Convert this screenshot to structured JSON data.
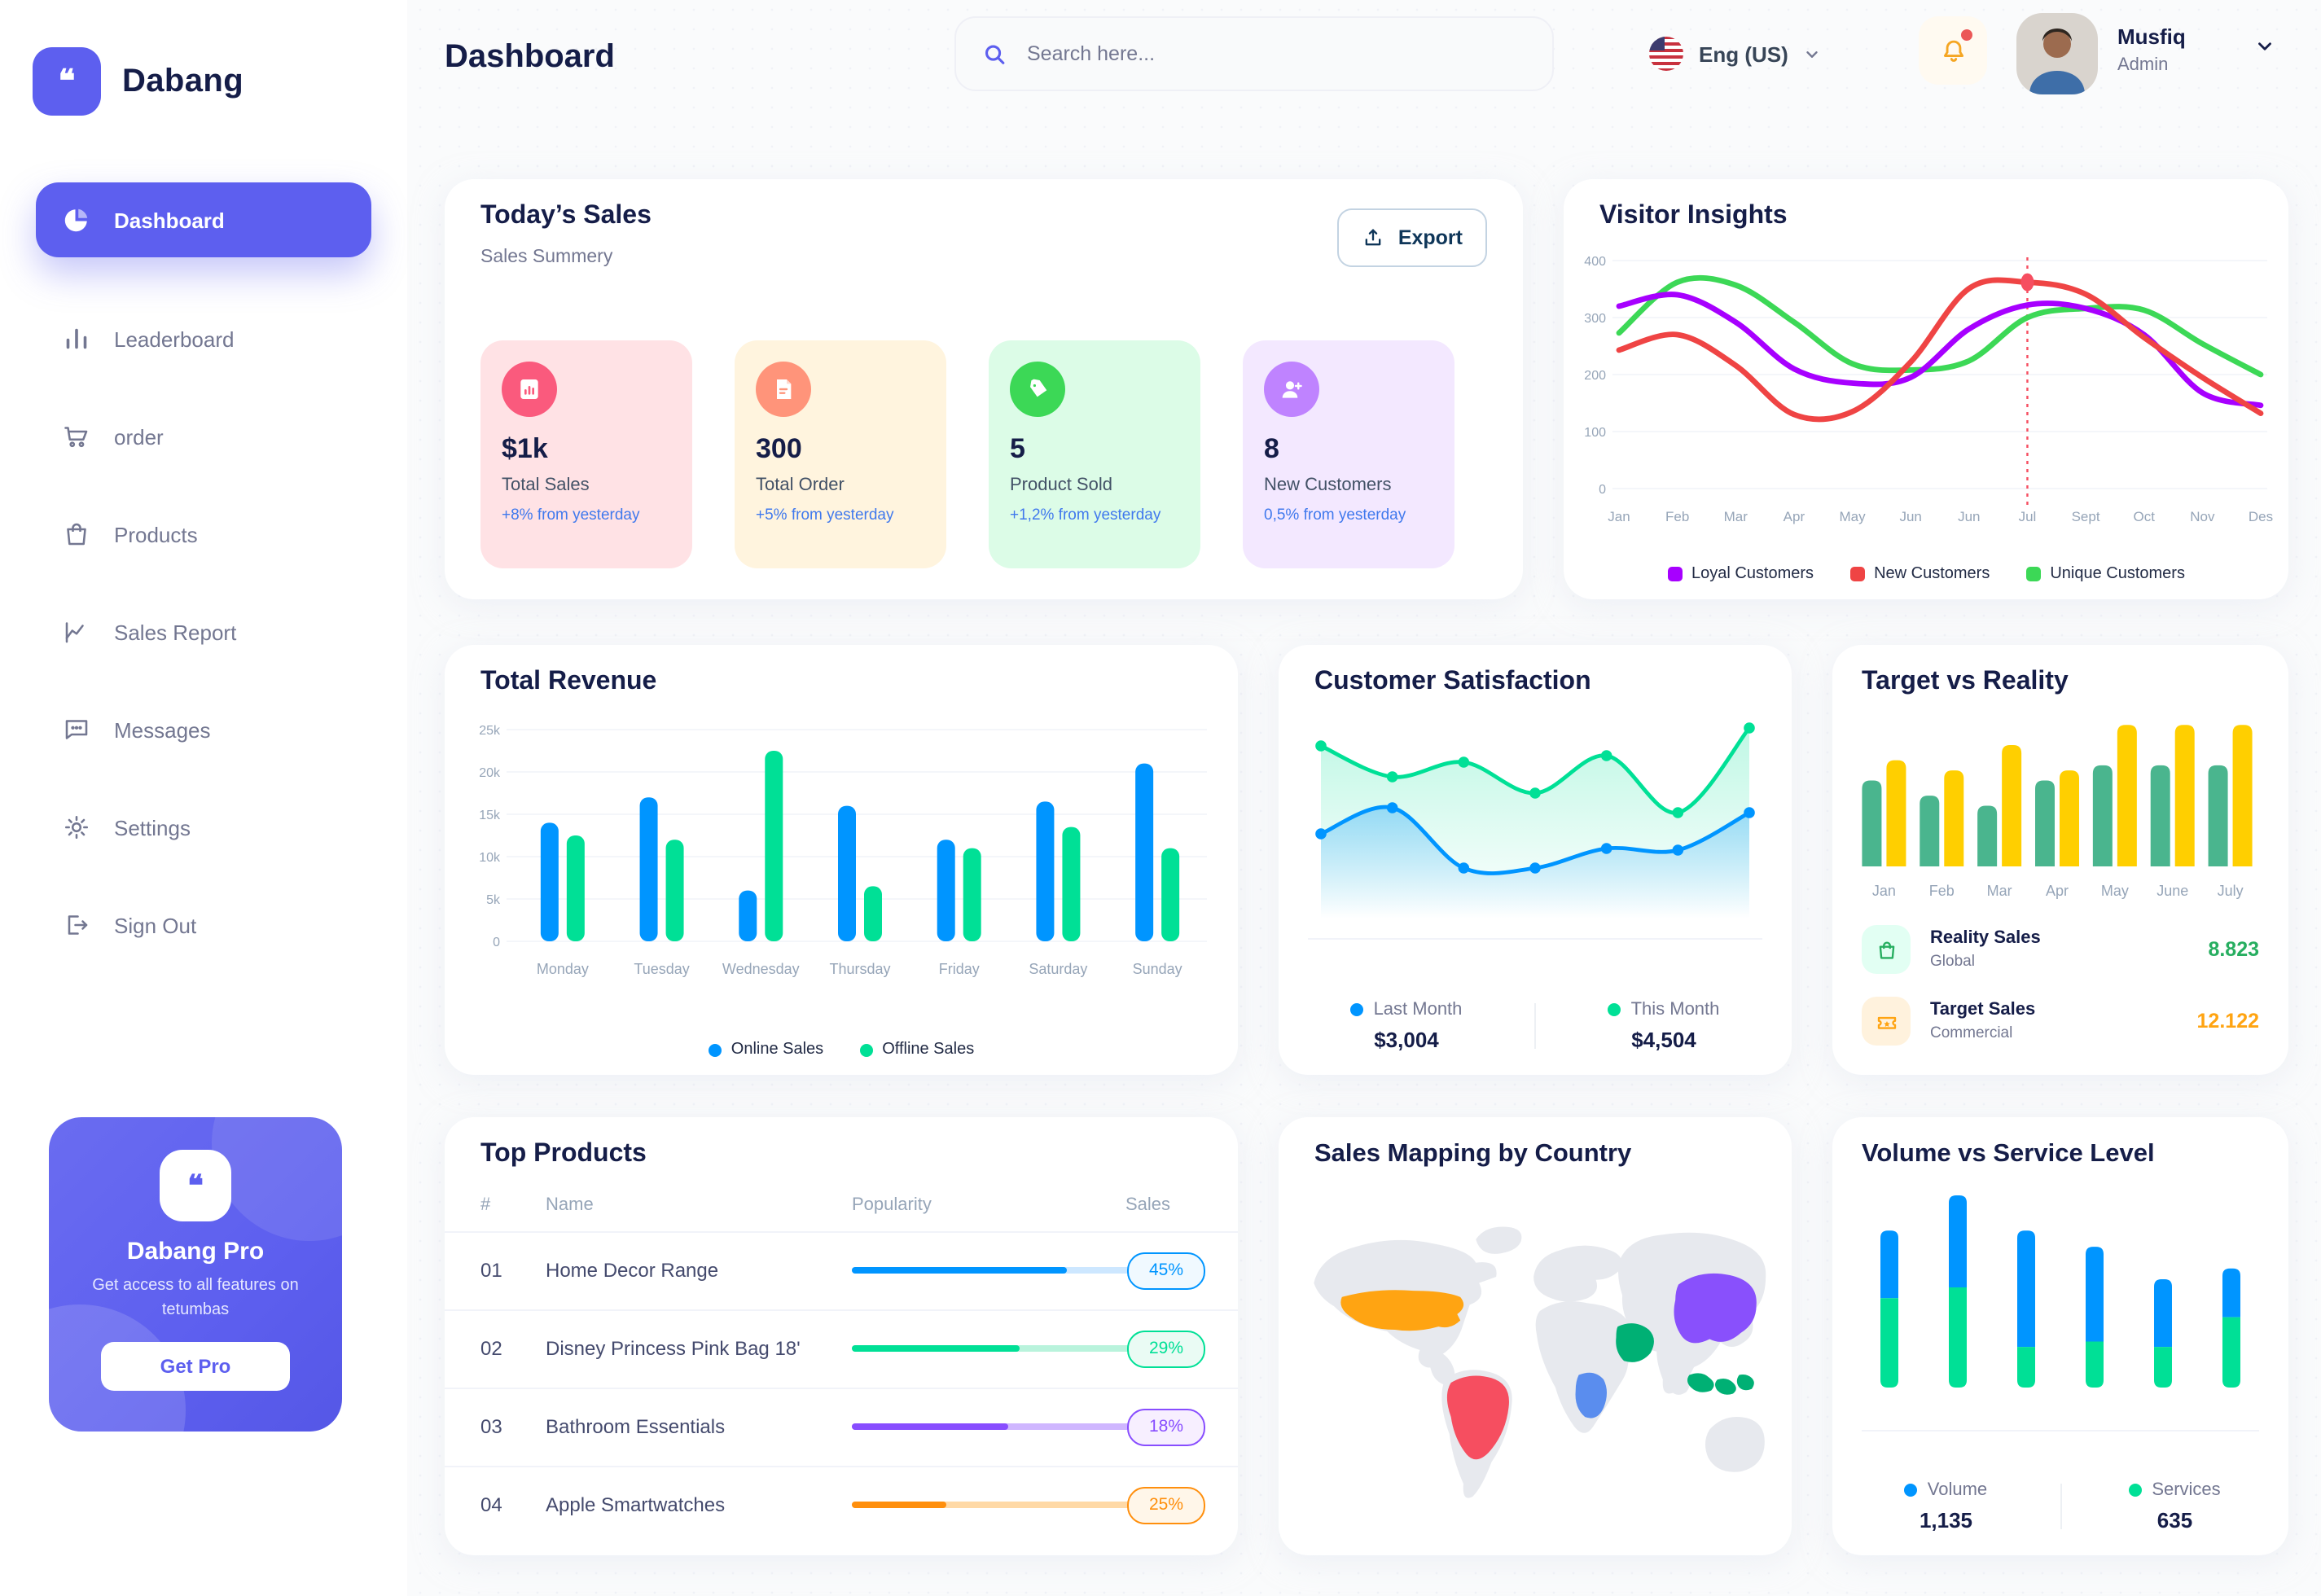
{
  "app": {
    "brand": "Dabang"
  },
  "sidebar": {
    "items": [
      {
        "label": "Dashboard",
        "active": true
      },
      {
        "label": "Leaderboard",
        "active": false
      },
      {
        "label": "order",
        "active": false
      },
      {
        "label": "Products",
        "active": false
      },
      {
        "label": "Sales Report",
        "active": false
      },
      {
        "label": "Messages",
        "active": false
      },
      {
        "label": "Settings",
        "active": false
      },
      {
        "label": "Sign Out",
        "active": false
      }
    ],
    "pro": {
      "title": "Dabang Pro",
      "desc": "Get access to all features on tetumbas",
      "button": "Get Pro"
    }
  },
  "header": {
    "title": "Dashboard",
    "search_placeholder": "Search here...",
    "language": "Eng (US)",
    "user": {
      "name": "Musfiq",
      "role": "Admin"
    }
  },
  "today_sales": {
    "title": "Today’s Sales",
    "subtitle": "Sales Summery",
    "export_label": "Export",
    "cards": [
      {
        "value": "$1k",
        "label": "Total Sales",
        "delta": "+8% from yesterday",
        "bg": "#FFE2E5",
        "accent": "#FA5A7D",
        "icon": "bar-chart-icon"
      },
      {
        "value": "300",
        "label": "Total Order",
        "delta": "+5% from yesterday",
        "bg": "#FFF4DE",
        "accent": "#FF947A",
        "icon": "file-icon"
      },
      {
        "value": "5",
        "label": "Product Sold",
        "delta": "+1,2% from yesterday",
        "bg": "#DCFCE7",
        "accent": "#3CD856",
        "icon": "tag-icon"
      },
      {
        "value": "8",
        "label": "New Customers",
        "delta": "0,5% from yesterday",
        "bg": "#F3E8FF",
        "accent": "#BF83FF",
        "icon": "user-plus-icon"
      }
    ]
  },
  "visitor_insights": {
    "title": "Visitor Insights",
    "chart_data": {
      "type": "line",
      "categories": [
        "Jan",
        "Feb",
        "Mar",
        "Apr",
        "May",
        "Jun",
        "Jun",
        "Jul",
        "Sept",
        "Oct",
        "Nov",
        "Des"
      ],
      "series": [
        {
          "name": "Loyal Customers",
          "color": "#A700FF",
          "values": [
            320,
            340,
            292,
            210,
            185,
            195,
            280,
            322,
            316,
            270,
            168,
            146
          ]
        },
        {
          "name": "New Customers",
          "color": "#EF4444",
          "values": [
            243,
            270,
            216,
            130,
            135,
            222,
            351,
            362,
            341,
            265,
            195,
            132
          ]
        },
        {
          "name": "Unique Customers",
          "color": "#3CD856",
          "values": [
            273,
            362,
            357,
            292,
            219,
            208,
            224,
            300,
            316,
            313,
            254,
            200
          ]
        }
      ],
      "ylim": [
        0,
        400
      ],
      "yticks": [
        0,
        100,
        200,
        300,
        400
      ],
      "highlight": {
        "category_index": 7,
        "series": "New Customers",
        "value": 362
      },
      "legend_position": "bottom"
    }
  },
  "total_revenue": {
    "title": "Total Revenue",
    "chart_data": {
      "type": "bar",
      "categories": [
        "Monday",
        "Tuesday",
        "Wednesday",
        "Thursday",
        "Friday",
        "Saturday",
        "Sunday"
      ],
      "series": [
        {
          "name": "Online Sales",
          "color": "#0095FF",
          "values": [
            14,
            17,
            6,
            16,
            12,
            16.5,
            21
          ]
        },
        {
          "name": "Offline Sales",
          "color": "#00E096",
          "values": [
            12.5,
            12,
            22.5,
            6.5,
            11,
            13.5,
            11
          ]
        }
      ],
      "unit": "k",
      "ylim": [
        0,
        25
      ],
      "ytick_labels": [
        "0",
        "5k",
        "10k",
        "15k",
        "20k",
        "25k"
      ],
      "legend_position": "bottom"
    }
  },
  "customer_satisfaction": {
    "title": "Customer Satisfaction",
    "chart_data": {
      "type": "area",
      "series": [
        {
          "name": "Last Month",
          "color": "#0095FF",
          "total": "$3,004",
          "values": [
            34,
            50,
            13,
            13,
            25,
            24,
            47
          ]
        },
        {
          "name": "This Month",
          "color": "#00E096",
          "total": "$4,504",
          "values": [
            88,
            69,
            78,
            59,
            82,
            47,
            99
          ]
        }
      ],
      "ylim": [
        0,
        100
      ],
      "grid": false,
      "legend_position": "bottom"
    }
  },
  "target_vs_reality": {
    "title": "Target vs Reality",
    "chart_data": {
      "type": "bar",
      "categories": [
        "Jan",
        "Feb",
        "Mar",
        "Apr",
        "May",
        "June",
        "July"
      ],
      "series": [
        {
          "name": "Reality Sales",
          "color": "#4AB58E",
          "values": [
            8.5,
            7,
            6,
            8.5,
            10,
            10,
            10
          ]
        },
        {
          "name": "Target Sales",
          "color": "#FFCF00",
          "values": [
            10.5,
            9.5,
            12,
            9.5,
            14,
            14,
            14
          ]
        }
      ],
      "ylim": [
        0,
        14.5
      ]
    },
    "legend": [
      {
        "label": "Reality Sales",
        "sublabel": "Global",
        "value": "8.823",
        "value_color": "#27AE60",
        "icon_bg": "#E2FFF3",
        "icon": "bag-icon"
      },
      {
        "label": "Target Sales",
        "sublabel": "Commercial",
        "value": "12.122",
        "value_color": "#FFA412",
        "icon_bg": "#FFF2DD",
        "icon": "ticket-icon"
      }
    ]
  },
  "top_products": {
    "title": "Top Products",
    "columns": [
      "#",
      "Name",
      "Popularity",
      "Sales"
    ],
    "rows": [
      {
        "num": "01",
        "name": "Home Decor Range",
        "popularity_pct": 77,
        "sales": "45%",
        "color": "#0095FF",
        "track": "#CDE7FF",
        "badge_bg": "#F0F9FF"
      },
      {
        "num": "02",
        "name": "Disney Princess Pink Bag 18'",
        "popularity_pct": 60,
        "sales": "29%",
        "color": "#00E096",
        "track": "#B9F3DC",
        "badge_bg": "#EAFBF4"
      },
      {
        "num": "03",
        "name": "Bathroom Essentials",
        "popularity_pct": 56,
        "sales": "18%",
        "color": "#884DFF",
        "track": "#CFB6FF",
        "badge_bg": "#F7EFFF"
      },
      {
        "num": "04",
        "name": "Apple Smartwatches",
        "popularity_pct": 34,
        "sales": "25%",
        "color": "#FF8F0D",
        "track": "#FFD9A6",
        "badge_bg": "#FFF6E9"
      }
    ]
  },
  "sales_map": {
    "title": "Sales Mapping by Country",
    "countries": [
      {
        "name": "United States",
        "color": "#FFA412"
      },
      {
        "name": "Brazil",
        "color": "#F64E60"
      },
      {
        "name": "Congo",
        "color": "#5A8DEE"
      },
      {
        "name": "Saudi Arabia",
        "color": "#00B074"
      },
      {
        "name": "China",
        "color": "#8950FC"
      },
      {
        "name": "Indonesia",
        "color": "#00B074"
      }
    ]
  },
  "volume_service": {
    "title": "Volume vs Service Level",
    "chart_data": {
      "type": "bar",
      "stacked": true,
      "series": [
        {
          "name": "Volume",
          "color": "#0095FF",
          "total": "1,135",
          "values": [
            25,
            34,
            43,
            35,
            25,
            18
          ]
        },
        {
          "name": "Services",
          "color": "#00E096",
          "total": "635",
          "values": [
            33,
            37,
            15,
            17,
            15,
            26
          ]
        }
      ],
      "legend_position": "bottom"
    }
  }
}
